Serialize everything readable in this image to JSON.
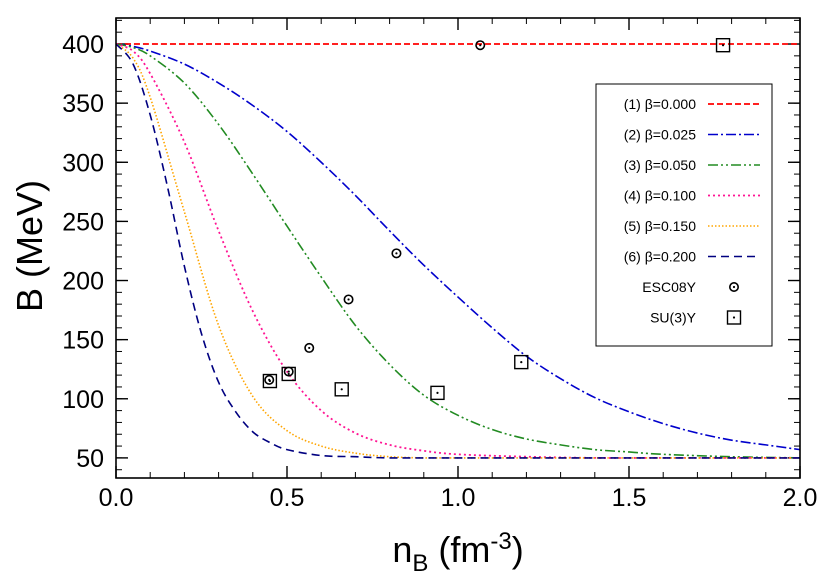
{
  "chart_data": {
    "type": "line",
    "xlabel": {
      "main": "n",
      "sub": "B",
      "unit_open": " (fm",
      "sup": "-3",
      "unit_close": ")"
    },
    "ylabel": "B (MeV)",
    "xlim": [
      0,
      2.0
    ],
    "ylim": [
      33,
      422
    ],
    "x_ticks": [
      0.0,
      0.5,
      1.0,
      1.5,
      2.0
    ],
    "x_tick_labels": [
      "0.0",
      "0.5",
      "1.0",
      "1.5",
      "2.0"
    ],
    "y_ticks": [
      50,
      100,
      150,
      200,
      250,
      300,
      350,
      400
    ],
    "y_tick_labels": [
      "50",
      "100",
      "150",
      "200",
      "250",
      "300",
      "350",
      "400"
    ],
    "x_minor_step": 0.1,
    "y_minor_step": 10,
    "legend_position": "top-right",
    "series": [
      {
        "name": "(1) β=0.000",
        "color": "#ff0000",
        "dash": "6,3",
        "width": 1.8,
        "x": [
          0,
          0.25,
          0.5,
          0.75,
          1.0,
          1.25,
          1.5,
          1.75,
          2.0
        ],
        "y": [
          400,
          400,
          400,
          400,
          400,
          400,
          400,
          400,
          400
        ]
      },
      {
        "name": "(2) β=0.025",
        "color": "#0000cc",
        "dash": "10,3,2,3",
        "width": 1.6,
        "x": [
          0,
          0.05,
          0.1,
          0.2,
          0.3,
          0.4,
          0.5,
          0.6,
          0.7,
          0.8,
          0.9,
          1.0,
          1.1,
          1.2,
          1.3,
          1.4,
          1.5,
          1.6,
          1.7,
          1.8,
          1.9,
          2.0
        ],
        "y": [
          400,
          398,
          394,
          383,
          367,
          348,
          326,
          300,
          272,
          242,
          213,
          186,
          160,
          136,
          117,
          101,
          89,
          79,
          71,
          65,
          61,
          57
        ]
      },
      {
        "name": "(3) β=0.050",
        "color": "#228b22",
        "dash": "10,3,2,3,2,3",
        "width": 1.6,
        "x": [
          0,
          0.05,
          0.1,
          0.2,
          0.3,
          0.4,
          0.5,
          0.6,
          0.7,
          0.8,
          0.9,
          1.0,
          1.1,
          1.2,
          1.3,
          1.4,
          1.5,
          1.6,
          1.8,
          2.0
        ],
        "y": [
          400,
          397,
          390,
          367,
          332,
          290,
          246,
          203,
          162,
          129,
          103,
          86,
          74,
          66,
          61,
          57,
          55,
          53,
          51,
          50
        ]
      },
      {
        "name": "(4) β=0.100",
        "color": "#ff1493",
        "dash": "2,3",
        "width": 1.8,
        "x": [
          0,
          0.05,
          0.1,
          0.2,
          0.3,
          0.4,
          0.5,
          0.6,
          0.7,
          0.8,
          0.9,
          1.0,
          1.2,
          1.4,
          1.6,
          2.0
        ],
        "y": [
          400,
          394,
          375,
          317,
          242,
          174,
          123,
          90,
          71,
          61,
          56,
          53,
          51,
          50,
          50,
          50
        ]
      },
      {
        "name": "(5) β=0.150",
        "color": "#ffa500",
        "dash": "1.5,2",
        "width": 1.6,
        "x": [
          0,
          0.05,
          0.1,
          0.2,
          0.3,
          0.4,
          0.5,
          0.6,
          0.7,
          0.8,
          0.9,
          1.0,
          1.2,
          2.0
        ],
        "y": [
          400,
          388,
          355,
          258,
          162,
          102,
          73,
          60,
          54,
          51,
          50,
          50,
          50,
          50
        ]
      },
      {
        "name": "(6) β=0.200",
        "color": "#000080",
        "dash": "8,5",
        "width": 1.6,
        "x": [
          0,
          0.05,
          0.1,
          0.15,
          0.2,
          0.25,
          0.3,
          0.35,
          0.4,
          0.45,
          0.5,
          0.6,
          0.7,
          0.8,
          1.0,
          2.0
        ],
        "y": [
          400,
          383,
          340,
          280,
          212,
          155,
          114,
          89,
          72,
          63,
          57,
          52,
          51,
          50,
          50,
          50
        ]
      }
    ],
    "markers": [
      {
        "name": "ESC08Y",
        "symbol": "circle-dot",
        "x": [
          1.065,
          0.82,
          0.68,
          0.565,
          0.505,
          0.448
        ],
        "y": [
          399,
          223,
          184,
          143,
          123,
          116
        ]
      },
      {
        "name": "SU(3)Y",
        "symbol": "square-dot",
        "x": [
          1.775,
          1.185,
          0.94,
          0.66,
          0.505,
          0.45
        ],
        "y": [
          399,
          131,
          105,
          108,
          121,
          115
        ]
      }
    ]
  }
}
